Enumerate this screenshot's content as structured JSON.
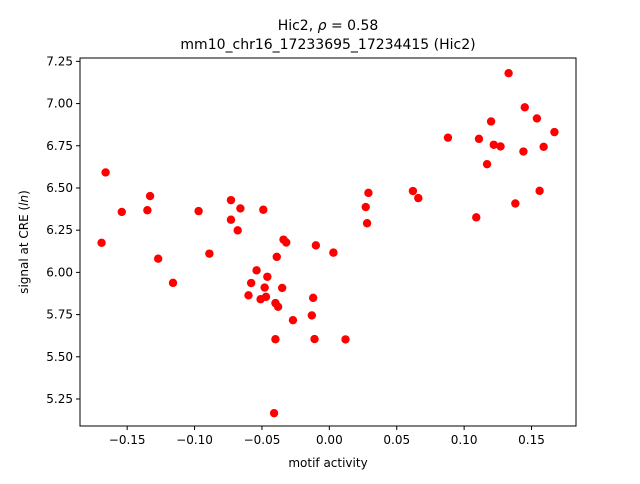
{
  "chart_data": {
    "type": "scatter",
    "title_line1_prefix": "Hic2, ",
    "title_rho_symbol": "ρ",
    "title_rho_value": " = 0.58",
    "title_line2": "mm10_chr16_17233695_17234415 (Hic2)",
    "xlabel": "motif activity",
    "ylabel_prefix": "signal at CRE (",
    "ylabel_italic": "ln",
    "ylabel_suffix": ")",
    "xlim": [
      -0.185,
      0.183
    ],
    "ylim": [
      5.09,
      7.27
    ],
    "xticks": [
      -0.15,
      -0.1,
      -0.05,
      0.0,
      0.05,
      0.1,
      0.15
    ],
    "xtick_labels": [
      "−0.15",
      "−0.10",
      "−0.05",
      "0.00",
      "0.05",
      "0.10",
      "0.15"
    ],
    "yticks": [
      5.25,
      5.5,
      5.75,
      6.0,
      6.25,
      6.5,
      6.75,
      7.0,
      7.25
    ],
    "ytick_labels": [
      "5.25",
      "5.50",
      "5.75",
      "6.00",
      "6.25",
      "6.50",
      "6.75",
      "7.00",
      "7.25"
    ],
    "grid": false,
    "marker_color": "#ff0000",
    "points": [
      [
        -0.169,
        6.175
      ],
      [
        -0.166,
        6.592
      ],
      [
        -0.154,
        6.358
      ],
      [
        -0.135,
        6.368
      ],
      [
        -0.133,
        6.452
      ],
      [
        -0.127,
        6.081
      ],
      [
        -0.116,
        5.938
      ],
      [
        -0.097,
        6.363
      ],
      [
        -0.089,
        6.111
      ],
      [
        -0.073,
        6.428
      ],
      [
        -0.073,
        6.312
      ],
      [
        -0.068,
        6.249
      ],
      [
        -0.066,
        6.379
      ],
      [
        -0.06,
        5.864
      ],
      [
        -0.058,
        5.937
      ],
      [
        -0.054,
        6.012
      ],
      [
        -0.051,
        5.841
      ],
      [
        -0.049,
        6.371
      ],
      [
        -0.048,
        5.91
      ],
      [
        -0.047,
        5.855
      ],
      [
        -0.046,
        5.974
      ],
      [
        -0.041,
        5.166
      ],
      [
        -0.04,
        5.604
      ],
      [
        -0.04,
        5.818
      ],
      [
        -0.039,
        6.092
      ],
      [
        -0.038,
        5.796
      ],
      [
        -0.035,
        5.908
      ],
      [
        -0.034,
        6.194
      ],
      [
        -0.032,
        6.177
      ],
      [
        -0.027,
        5.717
      ],
      [
        -0.013,
        5.745
      ],
      [
        -0.012,
        5.849
      ],
      [
        -0.01,
        6.16
      ],
      [
        -0.011,
        5.605
      ],
      [
        0.003,
        6.117
      ],
      [
        0.012,
        5.603
      ],
      [
        0.027,
        6.387
      ],
      [
        0.028,
        6.291
      ],
      [
        0.029,
        6.471
      ],
      [
        0.062,
        6.482
      ],
      [
        0.066,
        6.44
      ],
      [
        0.088,
        6.798
      ],
      [
        0.109,
        6.326
      ],
      [
        0.111,
        6.791
      ],
      [
        0.117,
        6.641
      ],
      [
        0.12,
        6.894
      ],
      [
        0.122,
        6.756
      ],
      [
        0.127,
        6.746
      ],
      [
        0.133,
        7.18
      ],
      [
        0.138,
        6.408
      ],
      [
        0.144,
        6.716
      ],
      [
        0.145,
        6.978
      ],
      [
        0.154,
        6.912
      ],
      [
        0.156,
        6.483
      ],
      [
        0.159,
        6.744
      ],
      [
        0.167,
        6.831
      ]
    ]
  }
}
